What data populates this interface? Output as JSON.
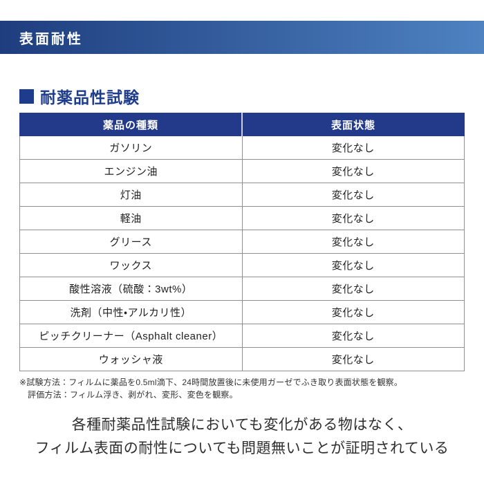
{
  "banner": {
    "title": "表面耐性"
  },
  "section": {
    "title": "耐薬品性試験"
  },
  "table": {
    "columns": [
      "薬品の種類",
      "表面状態"
    ],
    "rows": [
      {
        "chemical": "ガソリン",
        "state": "変化なし"
      },
      {
        "chemical": "エンジン油",
        "state": "変化なし"
      },
      {
        "chemical": "灯油",
        "state": "変化なし"
      },
      {
        "chemical": "軽油",
        "state": "変化なし"
      },
      {
        "chemical": "グリース",
        "state": "変化なし"
      },
      {
        "chemical": "ワックス",
        "state": "変化なし"
      },
      {
        "chemical": "酸性溶液（硫酸：3wt%）",
        "state": "変化なし"
      },
      {
        "chemical": "洗剤（中性・アルカリ性）",
        "state": "変化なし"
      },
      {
        "chemical": "ピッチクリーナー（Asphalt cleaner）",
        "state": "変化なし"
      },
      {
        "chemical": "ウォッシャ液",
        "state": "変化なし"
      }
    ]
  },
  "footnote": {
    "line1": "※試験方法：フィルムに薬品を0.5ml滴下、24時間放置後に未使用ガーゼでふき取り表面状態を観察。",
    "line2": "評価方法：フィルム浮き、剥がれ、変形、変色を観察。"
  },
  "conclusion": {
    "line1": "各種耐薬品性試験においても変化がある物はなく、",
    "line2": "フィルム表面の耐性についても問題無いことが証明されている"
  },
  "colors": {
    "banner_gradient_start": "#1e3d7e",
    "banner_gradient_end": "#4e82c1",
    "table_header_bg": "#233a8a",
    "section_title_color": "#1e3c8c",
    "table_border": "#8f8f8f",
    "body_text": "#222222"
  }
}
